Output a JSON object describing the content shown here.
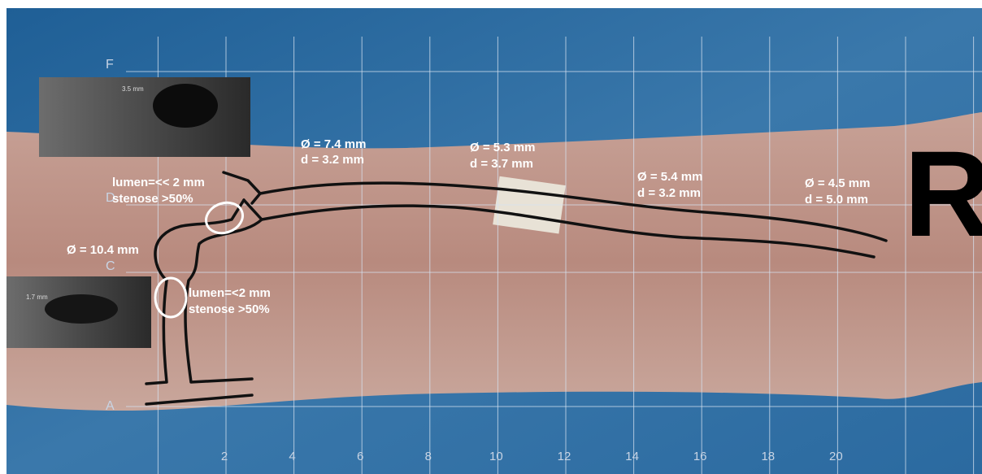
{
  "grid": {
    "rows": [
      "F",
      "D",
      "C",
      "A"
    ],
    "columns": [
      2,
      4,
      6,
      8,
      10,
      12,
      14,
      16,
      18,
      20
    ]
  },
  "side": "R",
  "insets": [
    {
      "caption": "3.5 mm"
    },
    {
      "caption": "1.7 mm"
    }
  ],
  "annotations": [
    {
      "lines": [
        "Ø = 7.4 mm",
        "d = 3.2 mm"
      ]
    },
    {
      "lines": [
        "Ø = 5.3 mm",
        "d = 3.7 mm"
      ]
    },
    {
      "lines": [
        "Ø = 5.4 mm",
        "d = 3.2 mm"
      ]
    },
    {
      "lines": [
        "Ø = 4.5 mm",
        "d = 5.0 mm"
      ]
    },
    {
      "lines": [
        "lumen=<< 2 mm",
        "stenose >50%"
      ]
    },
    {
      "lines": [
        "Ø = 10.4 mm"
      ]
    },
    {
      "lines": [
        "lumen=<2 mm",
        "stenose >50%"
      ]
    }
  ]
}
